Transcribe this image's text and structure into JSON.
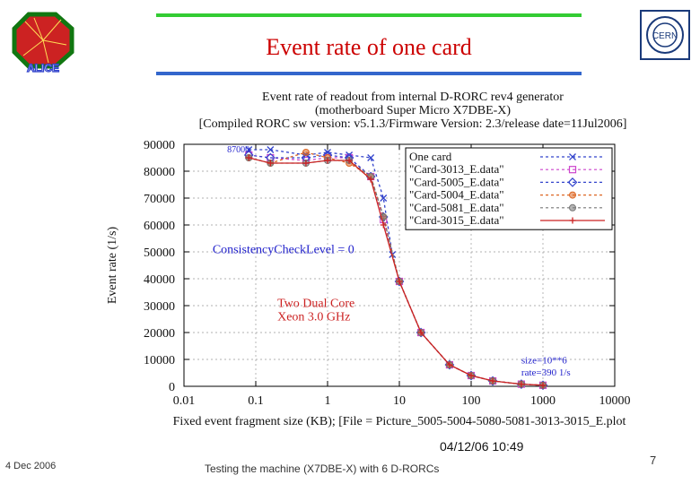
{
  "slide": {
    "title": "Event rate of one card",
    "footer_date": "4 Dec 2006",
    "footer_text": "Testing the machine (X7DBE-X) with 6 D-RORCs",
    "page_number": "7",
    "logo_left_text": "ALICE",
    "logo_right_text": "CERN",
    "colors": {
      "title": "#cc0000",
      "top_bar": "#33cc33",
      "bottom_bar": "#3366cc"
    }
  },
  "chart_data": {
    "type": "line",
    "title_lines": [
      "Event rate of readout from internal D-RORC rev4 generator",
      "(motherboard Super Micro X7DBE-X)",
      "[Compiled RORC sw version: v5.1.3/Firmware Version: 2.3/release date=11Jul2006]"
    ],
    "xlabel": "Fixed event fragment size (KB); [File = Picture_5005-5004-5080-5081-3013-3015_E.plot",
    "ylabel": "Event rate (1/s)",
    "xscale": "log",
    "xlim": [
      0.01,
      10000
    ],
    "ylim": [
      0,
      90000
    ],
    "x_ticks": [
      "0.01",
      "0.1",
      "1",
      "10",
      "100",
      "1000",
      "10000"
    ],
    "y_ticks": [
      "0",
      "10000",
      "20000",
      "30000",
      "40000",
      "50000",
      "60000",
      "70000",
      "80000",
      "90000"
    ],
    "grid": true,
    "legend_position": "top-right",
    "annotations": [
      {
        "text": "87000",
        "x": 0.04,
        "y": 87000,
        "color": "#2222cc"
      },
      {
        "text": "ConsistencyCheckLevel = 0",
        "x": 0.025,
        "y": 49500,
        "color": "#2222cc"
      },
      {
        "text": "Two Dual Core",
        "x": 0.2,
        "y": 29500,
        "color": "#cc2222"
      },
      {
        "text": "Xeon 3.0 GHz",
        "x": 0.2,
        "y": 24500,
        "color": "#cc2222"
      },
      {
        "text": "size=10**6",
        "x": 500,
        "y": 8500,
        "color": "#2222cc"
      },
      {
        "text": "rate=390 1/s",
        "x": 500,
        "y": 4000,
        "color": "#2222cc"
      }
    ],
    "timestamp": "04/12/06 10:49",
    "series": [
      {
        "name": "One card",
        "color": "#3344cc",
        "dash": "3,3",
        "marker": "x",
        "x": [
          0.08,
          0.16,
          0.5,
          1,
          2,
          4,
          6,
          8
        ],
        "y": [
          88000,
          88000,
          86000,
          87000,
          86000,
          85000,
          70000,
          49000
        ]
      },
      {
        "name": "\"Card-3013_E.data\"",
        "color": "#cc44cc",
        "dash": "3,3",
        "marker": "square",
        "x": [
          0.08,
          0.16,
          0.5,
          1,
          2,
          4,
          6,
          10,
          20,
          50,
          100,
          200,
          500,
          1000
        ],
        "y": [
          86000,
          85000,
          84000,
          85000,
          85000,
          78000,
          62000,
          39000,
          20000,
          8000,
          4000,
          2000,
          800,
          390
        ]
      },
      {
        "name": "\"Card-5005_E.data\"",
        "color": "#3344cc",
        "dash": "3,3",
        "marker": "diamond",
        "x": [
          0.08,
          0.16,
          0.5,
          1,
          2,
          4,
          6,
          10,
          20,
          50,
          100,
          200,
          500,
          1000
        ],
        "y": [
          86000,
          85000,
          85000,
          86000,
          85000,
          78000,
          63000,
          39000,
          20000,
          8000,
          4000,
          2000,
          800,
          390
        ]
      },
      {
        "name": "\"Card-5004_E.data\"",
        "color": "#dd6622",
        "dash": "3,3",
        "marker": "circle",
        "x": [
          0.08,
          0.16,
          0.5,
          1,
          2,
          4,
          6,
          10,
          20,
          50,
          100,
          200,
          500,
          1000
        ],
        "y": [
          85000,
          83000,
          87000,
          85000,
          83000,
          78000,
          63000,
          39000,
          20000,
          8000,
          4000,
          2000,
          800,
          390
        ]
      },
      {
        "name": "\"Card-5081_E.data\"",
        "color": "#777777",
        "dash": "3,3",
        "marker": "circle",
        "x": [
          0.08,
          0.16,
          0.5,
          1,
          2,
          4,
          6,
          10,
          20,
          50,
          100,
          200,
          500,
          1000
        ],
        "y": [
          85000,
          83000,
          83000,
          84000,
          84000,
          78000,
          63000,
          39000,
          20000,
          8000,
          4000,
          2000,
          800,
          390
        ]
      },
      {
        "name": "\"Card-3015_E.data\"",
        "color": "#cc2222",
        "dash": "",
        "marker": "plus",
        "x": [
          0.08,
          0.16,
          0.5,
          1,
          2,
          4,
          6,
          10,
          20,
          50,
          100,
          200,
          500,
          1000
        ],
        "y": [
          85000,
          83000,
          83000,
          84000,
          84000,
          77000,
          60000,
          39000,
          20000,
          8000,
          4000,
          2000,
          800,
          390
        ]
      }
    ]
  }
}
